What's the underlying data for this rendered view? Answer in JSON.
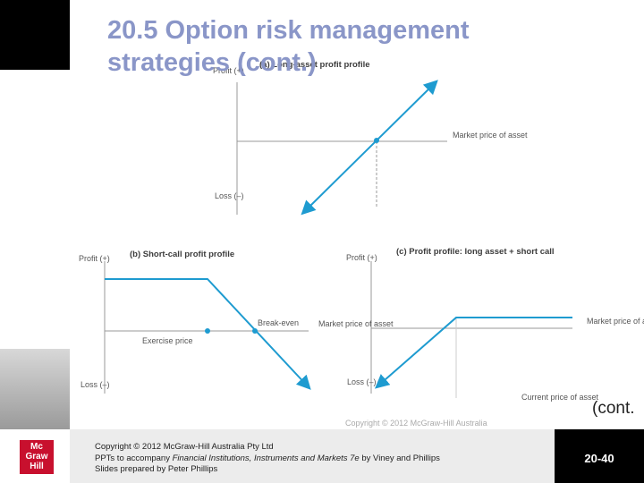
{
  "header": {
    "title": "20.5 Option risk management strategies (cont.)"
  },
  "panels": [
    {
      "title": "(a) Long-asset profit profile",
      "profit": "Profit (+)",
      "loss": "Loss (–)",
      "axis_label": "Market price of asset"
    },
    {
      "title": "(b) Short-call profit profile",
      "profit": "Profit (+)",
      "loss": "Loss (–)",
      "exercise": "Exercise price",
      "breakeven": "Break-even"
    },
    {
      "title": "(c) Profit profile: long asset + short call",
      "profit": "Profit (+)",
      "loss": "Loss (–)",
      "axis_label_left": "Market price of asset",
      "axis_label_right": "Market price of asset",
      "current": "Current price of asset"
    }
  ],
  "cont": "(cont.",
  "image_copyright": "Copyright © 2012 McGraw-Hill Australia",
  "footer": {
    "logo": [
      "Mc",
      "Graw",
      "Hill"
    ],
    "line1": "Copyright © 2012 McGraw-Hill Australia Pty Ltd",
    "line2_prefix": "PPTs to accompany ",
    "line2_italic": "Financial Institutions, Instruments and Markets 7e",
    "line2_suffix": " by Viney and Phillips",
    "line3": "Slides prepared by Peter Phillips",
    "page": "20-40"
  }
}
